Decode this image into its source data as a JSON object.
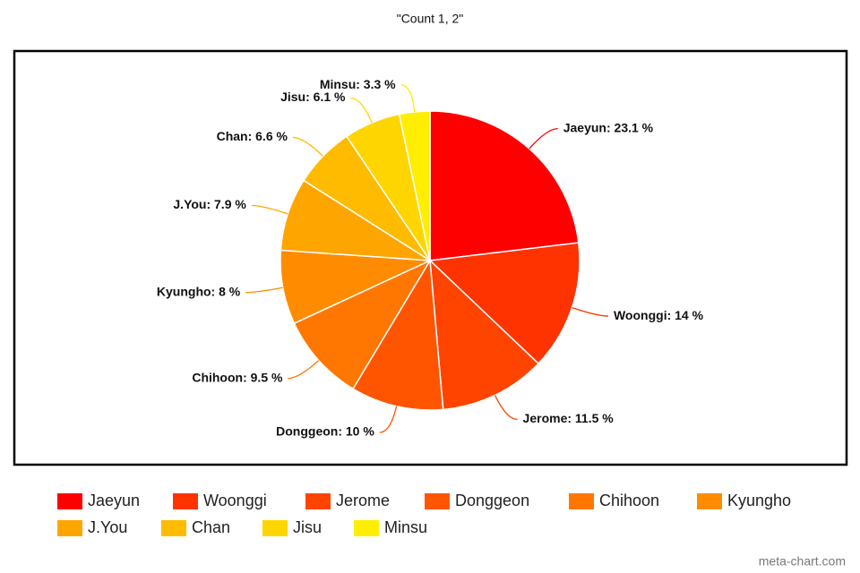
{
  "chart_data": {
    "type": "pie",
    "title": "\"Count 1, 2\"",
    "categories": [
      "Jaeyun",
      "Woonggi",
      "Jerome",
      "Donggeon",
      "Chihoon",
      "Kyungho",
      "J.You",
      "Chan",
      "Jisu",
      "Minsu"
    ],
    "values": [
      23.1,
      14,
      11.5,
      10,
      9.5,
      8,
      7.9,
      6.6,
      6.1,
      3.3
    ],
    "value_labels": [
      "Jaeyun: 23.1 %",
      "Woonggi: 14 %",
      "Jerome: 11.5 %",
      "Donggeon: 10 %",
      "Chihoon: 9.5 %",
      "Kyungho: 8 %",
      "J.You: 7.9 %",
      "Chan: 6.6 %",
      "Jisu: 6.1 %",
      "Minsu: 3.3 %"
    ],
    "colors": [
      "#ff0000",
      "#ff3300",
      "#ff4400",
      "#ff5500",
      "#ff7700",
      "#ff8c00",
      "#ffa500",
      "#ffbb00",
      "#ffd500",
      "#ffee00"
    ],
    "legend": "bottom",
    "watermark": "meta-chart.com"
  }
}
